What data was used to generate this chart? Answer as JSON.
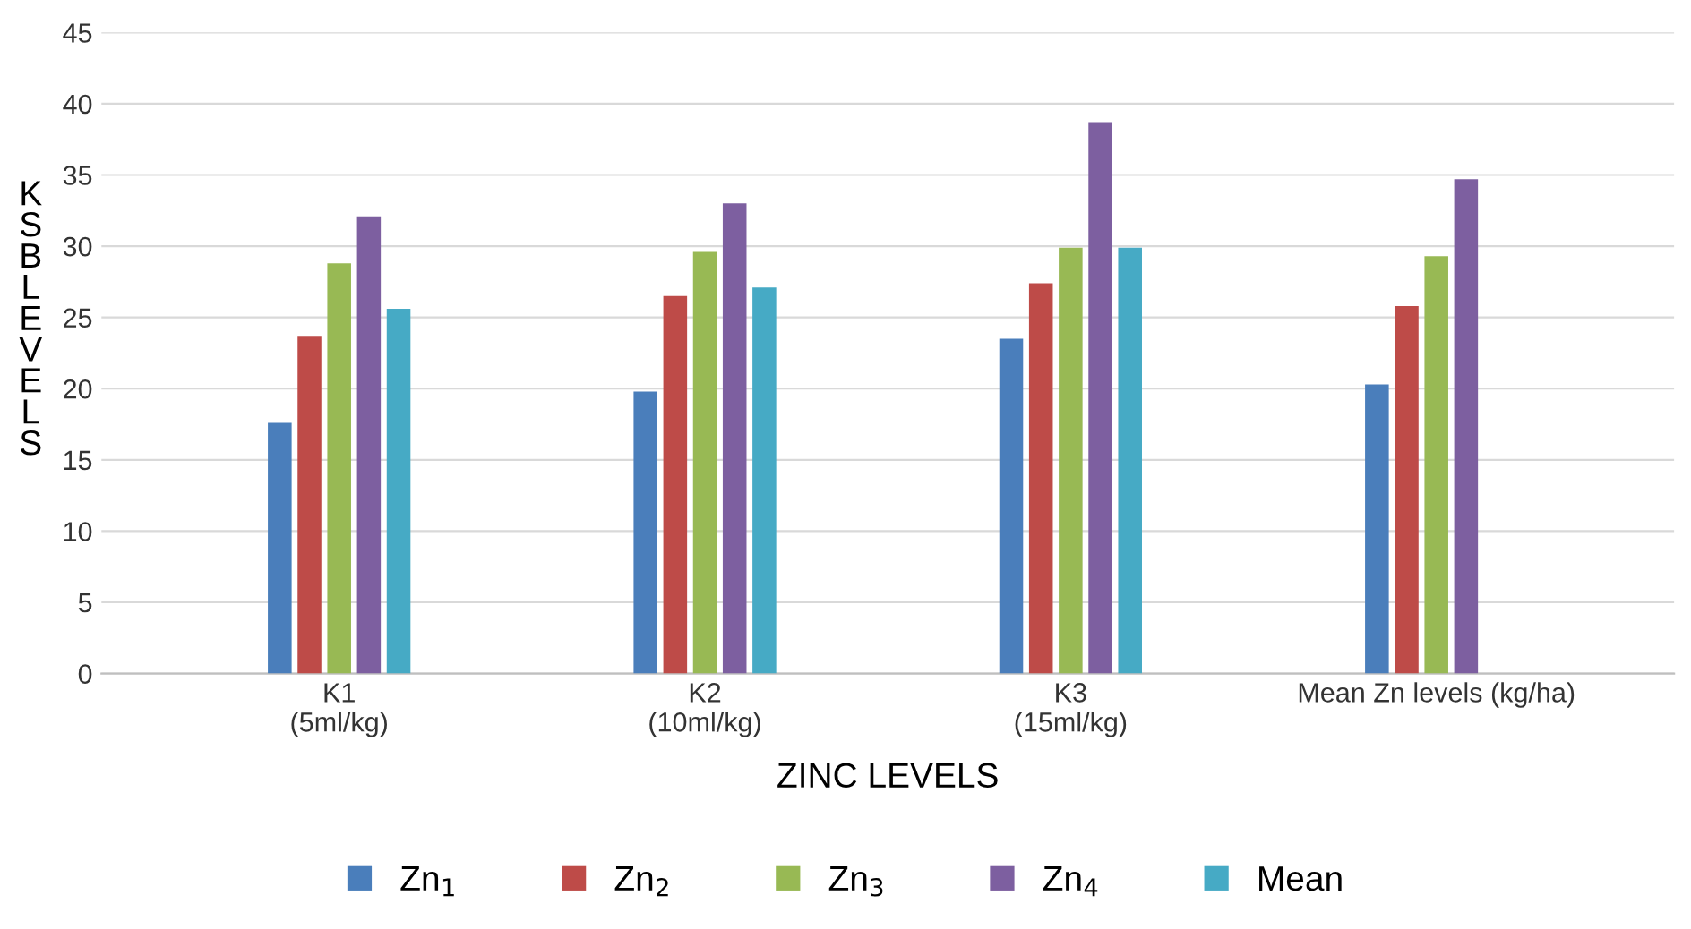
{
  "chart_data": {
    "type": "bar",
    "xlabel": "ZINC LEVELS",
    "ylabel": "KSBLEVELS",
    "categories": [
      "K1\n(5ml/kg)",
      "K2\n(10ml/kg)",
      "K3\n(15ml/kg)",
      "Mean Zn levels (kg/ha)"
    ],
    "series": [
      {
        "name": "Zn$_{1}$",
        "color": "#4a7ebb",
        "values": [
          17.6,
          19.8,
          23.5,
          20.3
        ]
      },
      {
        "name": "Zn$_{2}$",
        "color": "#be4b48",
        "values": [
          23.7,
          26.5,
          27.4,
          25.8
        ]
      },
      {
        "name": "Zn$_{3}$",
        "color": "#98b954",
        "values": [
          28.8,
          29.6,
          29.9,
          29.3
        ]
      },
      {
        "name": "Zn$_{4}$",
        "color": "#7d5fa0",
        "values": [
          32.1,
          33.0,
          38.7,
          34.7
        ]
      },
      {
        "name": "Mean",
        "color": "#46aac5",
        "values": [
          25.6,
          27.1,
          29.9,
          null
        ]
      }
    ],
    "ylim": [
      0,
      45
    ],
    "yticks": [
      0,
      5,
      10,
      15,
      20,
      25,
      30,
      35,
      40,
      45
    ],
    "grid": "y",
    "legend": "bottom"
  }
}
